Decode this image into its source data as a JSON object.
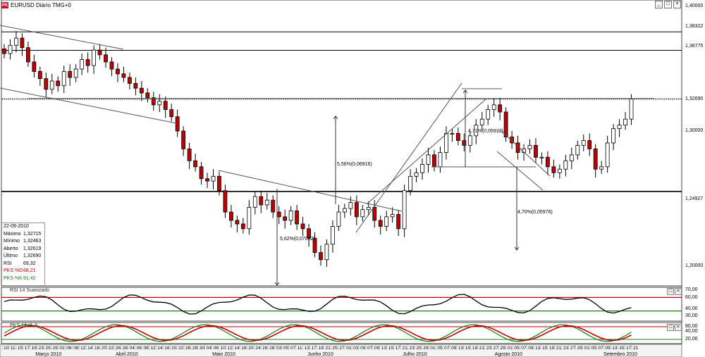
{
  "window": {
    "icon_text": "PK",
    "title": "EURUSD Diário TMG+0",
    "buttons": [
      "_",
      "□",
      "×"
    ]
  },
  "info_box": {
    "date": "22-09-2010",
    "rows": [
      {
        "label": "Máximo",
        "value": "1,32715",
        "color": "#000000"
      },
      {
        "label": "Mínimo",
        "value": "1,32463",
        "color": "#000000"
      },
      {
        "label": "Aberto",
        "value": "1,32619",
        "color": "#000000"
      },
      {
        "label": "Último",
        "value": "1,32690",
        "color": "#000000"
      },
      {
        "label": "RSI",
        "value": "69,32",
        "color": "#000000"
      },
      {
        "label": "PKS %D",
        "value": "88,21",
        "color": "#c00000"
      },
      {
        "label": "PKS %K",
        "value": "91,42",
        "color": "#1a7a1a"
      }
    ]
  },
  "price_axis": {
    "ticks": [
      "1,40000",
      "1,30000",
      "1,20000"
    ],
    "level_tags": [
      "1,38322",
      "1,36775",
      "1,32690",
      "1,24927"
    ]
  },
  "annotations": {
    "rise_pct": "5,56%(0,06916)",
    "channel_pct": "4,71%(0,05932)",
    "drop_pct": "4,70%(0,05976)",
    "low_pct": "5,62%(0,07062)"
  },
  "rsi_pane": {
    "title": "RSI 14 Suavizado",
    "ticks": [
      "70,00",
      "60,00",
      "40,00",
      "30,00"
    ]
  },
  "pks_pane": {
    "title": "PKS 14, 3, 5",
    "ticks": [
      "80,00",
      "40,00",
      "20,00"
    ]
  },
  "time_axis": {
    "days": [
      "10",
      "11",
      "15",
      "17",
      "19",
      "23",
      "25",
      "29",
      "02",
      "06",
      "08",
      "12",
      "14",
      "16",
      "20",
      "22",
      "26",
      "28",
      "04",
      "06",
      "08",
      "12",
      "14",
      "16",
      "20",
      "22",
      "26",
      "28",
      "30",
      "04",
      "06",
      "10",
      "12",
      "14",
      "18",
      "20",
      "24",
      "26",
      "28",
      "03",
      "05",
      "07",
      "11",
      "13",
      "17",
      "19",
      "21",
      "25",
      "27",
      "01",
      "03",
      "05",
      "07",
      "09",
      "13",
      "15",
      "17",
      "21",
      "23",
      "25",
      "29",
      "01",
      "05",
      "07",
      "09",
      "13",
      "15",
      "19",
      "21",
      "23",
      "27",
      "29",
      "01",
      "05",
      "07",
      "09",
      "13",
      "15",
      "19",
      "21",
      "23",
      "27",
      "29",
      "01",
      "05",
      "07",
      "09",
      "13",
      "15",
      "17",
      "21"
    ],
    "months": [
      {
        "label": "Março 2010",
        "frac": 0.05
      },
      {
        "label": "Abril 2010",
        "frac": 0.168
      },
      {
        "label": "Maio 2010",
        "frac": 0.31
      },
      {
        "label": "Junho 2010",
        "frac": 0.45
      },
      {
        "label": "Julho 2010",
        "frac": 0.59
      },
      {
        "label": "Agosto 2010",
        "frac": 0.725
      },
      {
        "label": "Setembro 2010",
        "frac": 0.885
      }
    ]
  },
  "colors": {
    "bull": "#ffffff",
    "bear": "#c00000",
    "rsi_line": "#000000",
    "pks_d": "#c00000",
    "pks_k": "#1a7a1a",
    "rsi_upper": "#c00000",
    "rsi_lower": "#1a7a1a"
  },
  "chart_data": {
    "type": "candlestick",
    "title": "EURUSD Diário TMG+0",
    "ylim": [
      1.17,
      1.41
    ],
    "horizontal_levels": [
      1.38322,
      1.36775,
      1.3269,
      1.24927
    ],
    "closes": [
      1.365,
      1.372,
      1.378,
      1.37,
      1.358,
      1.35,
      1.344,
      1.335,
      1.342,
      1.338,
      1.35,
      1.345,
      1.352,
      1.36,
      1.355,
      1.368,
      1.364,
      1.358,
      1.352,
      1.348,
      1.345,
      1.34,
      1.336,
      1.332,
      1.328,
      1.322,
      1.325,
      1.318,
      1.312,
      1.3,
      1.285,
      1.275,
      1.27,
      1.26,
      1.258,
      1.262,
      1.25,
      1.232,
      1.225,
      1.222,
      1.218,
      1.236,
      1.245,
      1.238,
      1.242,
      1.232,
      1.228,
      1.225,
      1.233,
      1.222,
      1.218,
      1.21,
      1.198,
      1.192,
      1.205,
      1.22,
      1.232,
      1.235,
      1.24,
      1.228,
      1.234,
      1.236,
      1.225,
      1.22,
      1.228,
      1.23,
      1.218,
      1.25,
      1.262,
      1.265,
      1.272,
      1.28,
      1.27,
      1.282,
      1.298,
      1.298,
      1.292,
      1.288,
      1.296,
      1.305,
      1.31,
      1.318,
      1.322,
      1.316,
      1.295,
      1.29,
      1.282,
      1.285,
      1.288,
      1.278,
      1.278,
      1.27,
      1.265,
      1.268,
      1.275,
      1.28,
      1.288,
      1.292,
      1.285,
      1.268,
      1.27,
      1.29,
      1.302,
      1.305,
      1.31,
      1.3269
    ]
  }
}
